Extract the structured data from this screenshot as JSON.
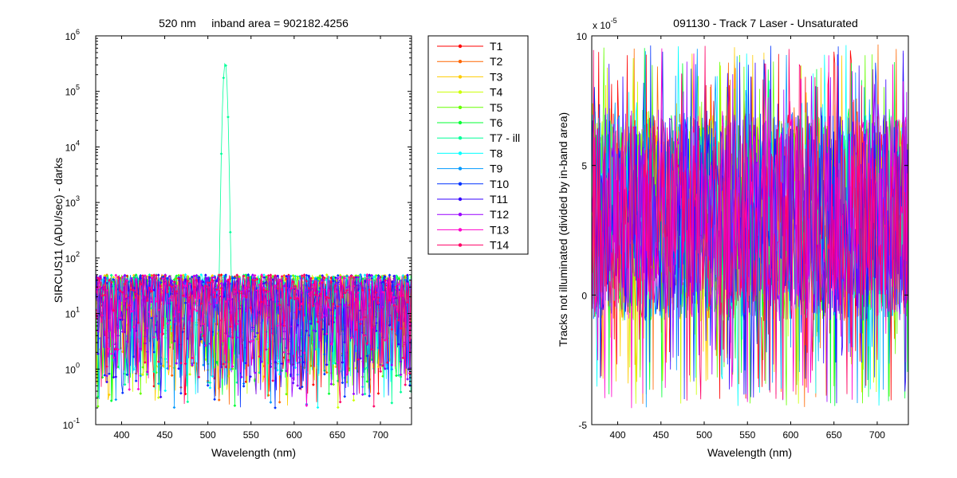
{
  "figure": {
    "background": "#ffffff"
  },
  "chart_data": [
    {
      "type": "line",
      "title": "520 nm     inband area = 902182.4256",
      "xlabel": "Wavelength (nm)",
      "ylabel": "SIRCUS11  (ADU/sec) - darks",
      "xlim": [
        370,
        736
      ],
      "ylim": [
        0.1,
        1000000
      ],
      "yscale": "log",
      "xticks": [
        "400",
        "450",
        "500",
        "550",
        "600",
        "650",
        "700"
      ],
      "yticks": [
        {
          "base": "10",
          "exp": "6"
        },
        {
          "base": "10",
          "exp": "5"
        },
        {
          "base": "10",
          "exp": "4"
        },
        {
          "base": "10",
          "exp": "3"
        },
        {
          "base": "10",
          "exp": "2"
        },
        {
          "base": "10",
          "exp": "1"
        },
        {
          "base": "10",
          "exp": "0"
        },
        {
          "base": "10",
          "exp": "-1"
        }
      ],
      "noise_band": {
        "typical_low": 5,
        "typical_high": 50,
        "min": 0.2
      },
      "peak": {
        "series": "T7 - ill",
        "x": 520,
        "y": 330000
      },
      "legend_position": "outside-right",
      "series": [
        {
          "name": "T1",
          "color": "#ff0000"
        },
        {
          "name": "T2",
          "color": "#ff6600"
        },
        {
          "name": "T3",
          "color": "#ffcc00"
        },
        {
          "name": "T4",
          "color": "#ccff00"
        },
        {
          "name": "T5",
          "color": "#66ff00"
        },
        {
          "name": "T6",
          "color": "#00ff33"
        },
        {
          "name": "T7 - ill",
          "color": "#00ff99"
        },
        {
          "name": "T8",
          "color": "#00ffff"
        },
        {
          "name": "T9",
          "color": "#0099ff"
        },
        {
          "name": "T10",
          "color": "#0033ff"
        },
        {
          "name": "T11",
          "color": "#3300ff"
        },
        {
          "name": "T12",
          "color": "#9900ff"
        },
        {
          "name": "T13",
          "color": "#ff00cc"
        },
        {
          "name": "T14",
          "color": "#ff0066"
        }
      ]
    },
    {
      "type": "line",
      "title": "091130 - Track 7 Laser - Unsaturated",
      "xlabel": "Wavelength (nm)",
      "ylabel": "Tracks not illuminated (divided by in-band area)",
      "xlim": [
        370,
        736
      ],
      "ylim": [
        -5,
        10
      ],
      "y_multiplier": {
        "base": "x 10",
        "exp": "-5"
      },
      "xticks": [
        "400",
        "450",
        "500",
        "550",
        "600",
        "650",
        "700"
      ],
      "yticks": [
        "10",
        "5",
        "0",
        "-5"
      ],
      "noise_band": {
        "typical_low": -1,
        "typical_high": 7,
        "min": -4.4,
        "max": 9.7
      },
      "series_names": [
        "T1",
        "T2",
        "T3",
        "T4",
        "T5",
        "T6",
        "T8",
        "T9",
        "T10",
        "T11",
        "T12",
        "T13",
        "T14"
      ]
    }
  ]
}
